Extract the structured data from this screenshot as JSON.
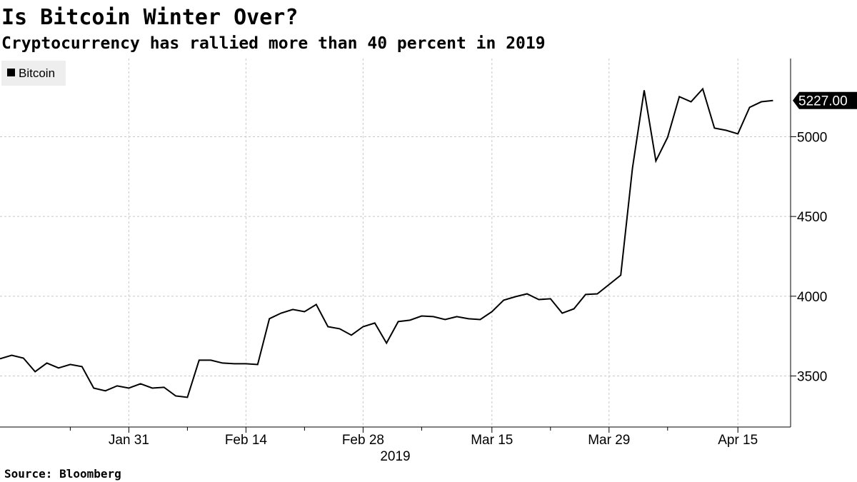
{
  "chart_data": {
    "type": "line",
    "title": "Is Bitcoin Winter Over?",
    "subtitle": "Cryptocurrency has rallied more than 40 percent in 2019",
    "source": "Source: Bloomberg",
    "xlabel": "2019",
    "categories": [
      null,
      null,
      null,
      null,
      null,
      null,
      null,
      null,
      null,
      null,
      null,
      "Jan 31",
      null,
      null,
      null,
      null,
      null,
      null,
      null,
      null,
      null,
      "Feb 14",
      null,
      null,
      null,
      null,
      null,
      null,
      null,
      null,
      null,
      "Feb 28",
      null,
      null,
      null,
      null,
      null,
      null,
      null,
      null,
      null,
      null,
      "Mar 15",
      null,
      null,
      null,
      null,
      null,
      null,
      null,
      null,
      null,
      "Mar 29",
      null,
      null,
      null,
      null,
      null,
      null,
      null,
      null,
      null,
      null,
      "Apr 15",
      null,
      null,
      null
    ],
    "series": [
      {
        "name": "Bitcoin",
        "color": "#000000",
        "last_label": "5227.00",
        "values": [
          3608,
          3630,
          3612,
          3527,
          3581,
          3550,
          3572,
          3559,
          3424,
          3407,
          3438,
          3424,
          3451,
          3424,
          3429,
          3375,
          3366,
          3599,
          3599,
          3581,
          3577,
          3577,
          3572,
          3859,
          3894,
          3917,
          3903,
          3948,
          3809,
          3796,
          3756,
          3809,
          3832,
          3706,
          3841,
          3850,
          3876,
          3872,
          3854,
          3872,
          3859,
          3854,
          3903,
          3975,
          3997,
          4015,
          3979,
          3984,
          3894,
          3921,
          4011,
          4015,
          4073,
          4132,
          4803,
          5291,
          4848,
          4996,
          5251,
          5219,
          5300,
          5054,
          5040,
          5018,
          5184,
          5219,
          5227
        ]
      }
    ],
    "ylim": [
      3180,
      5490
    ],
    "yticks": [
      3500,
      4000,
      4500,
      5000
    ],
    "grid": true,
    "legend": "upper left"
  }
}
